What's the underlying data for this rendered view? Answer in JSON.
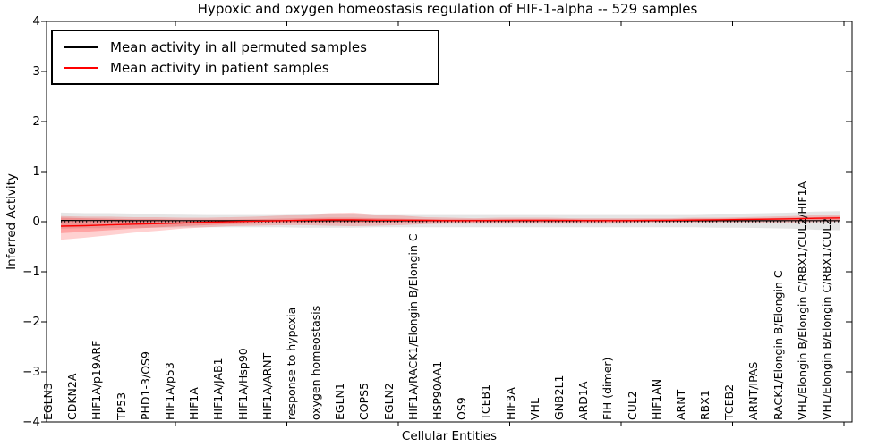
{
  "chart_data": {
    "type": "line",
    "title": "Hypoxic and oxygen homeostasis regulation of HIF-1-alpha -- 529 samples",
    "xlabel": "Cellular Entities",
    "ylabel": "Inferred Activity",
    "ylim": [
      -4,
      4
    ],
    "yticks": [
      4,
      3,
      2,
      1,
      0,
      -1,
      -2,
      -3,
      -4
    ],
    "grid": false,
    "legend_position": "upper left",
    "zero_reference_line": 0,
    "categories": [
      "EGLN3",
      "CDKN2A",
      "HIF1A/p19ARF",
      "TP53",
      "PHD1-3/OS9",
      "HIF1A/p53",
      "HIF1A",
      "HIF1A/JAB1",
      "HIF1A/Hsp90",
      "HIF1A/ARNT",
      "response to hypoxia",
      "oxygen homeostasis",
      "EGLN1",
      "COPS5",
      "EGLN2",
      "HIF1A/RACK1/Elongin B/Elongin C",
      "HSP90AA1",
      "OS9",
      "TCEB1",
      "HIF3A",
      "VHL",
      "GNB2L1",
      "ARD1A",
      "FIH (dimer)",
      "CUL2",
      "HIF1AN",
      "ARNT",
      "RBX1",
      "TCEB2",
      "ARNT/IPAS",
      "RACK1/Elongin B/Elongin C",
      "VHL/Elongin B/Elongin C/RBX1/CUL2/HIF1A",
      "VHL/Elongin B/Elongin C/RBX1/CUL2"
    ],
    "series": [
      {
        "name": "Mean activity in all permuted samples",
        "color": "#000000",
        "values": [
          0.025,
          0.024,
          0.023,
          0.022,
          0.022,
          0.021,
          0.02,
          0.02,
          0.02,
          0.02,
          0.02,
          0.02,
          0.02,
          0.02,
          0.02,
          0.02,
          0.02,
          0.02,
          0.02,
          0.02,
          0.02,
          0.02,
          0.02,
          0.02,
          0.02,
          0.02,
          0.02,
          0.02,
          0.02,
          0.02,
          0.021,
          0.022,
          0.022
        ]
      },
      {
        "name": "Mean activity in patient samples",
        "color": "#ff0000",
        "values": [
          -0.09,
          -0.08,
          -0.065,
          -0.05,
          -0.04,
          -0.025,
          -0.01,
          0.0,
          0.01,
          0.02,
          0.03,
          0.035,
          0.035,
          0.03,
          0.03,
          0.027,
          0.022,
          0.022,
          0.025,
          0.027,
          0.027,
          0.025,
          0.022,
          0.022,
          0.025,
          0.028,
          0.033,
          0.038,
          0.043,
          0.05,
          0.058,
          0.068,
          0.075
        ]
      }
    ],
    "bands": [
      {
        "name": "permuted-samples-spread",
        "color": "#aaaaaa",
        "opacity": 0.3,
        "upper": [
          0.18,
          0.17,
          0.17,
          0.16,
          0.16,
          0.155,
          0.15,
          0.15,
          0.15,
          0.15,
          0.16,
          0.16,
          0.16,
          0.15,
          0.15,
          0.15,
          0.15,
          0.15,
          0.15,
          0.15,
          0.15,
          0.15,
          0.15,
          0.15,
          0.15,
          0.15,
          0.15,
          0.16,
          0.16,
          0.17,
          0.18,
          0.2,
          0.21
        ],
        "lower": [
          -0.14,
          -0.13,
          -0.13,
          -0.12,
          -0.12,
          -0.115,
          -0.11,
          -0.11,
          -0.11,
          -0.11,
          -0.12,
          -0.12,
          -0.12,
          -0.11,
          -0.11,
          -0.11,
          -0.11,
          -0.11,
          -0.11,
          -0.11,
          -0.11,
          -0.11,
          -0.11,
          -0.11,
          -0.11,
          -0.11,
          -0.11,
          -0.12,
          -0.12,
          -0.13,
          -0.14,
          -0.16,
          -0.17
        ]
      },
      {
        "name": "patient-samples-spread-outer",
        "color": "#ff0000",
        "opacity": 0.18,
        "upper": [
          0.11,
          0.1,
          0.1,
          0.09,
          0.09,
          0.08,
          0.08,
          0.09,
          0.1,
          0.12,
          0.14,
          0.17,
          0.18,
          0.14,
          0.12,
          0.09,
          0.08,
          0.07,
          0.08,
          0.08,
          0.08,
          0.07,
          0.07,
          0.07,
          0.07,
          0.07,
          0.08,
          0.08,
          0.09,
          0.1,
          0.11,
          0.13,
          0.14
        ],
        "lower": [
          -0.36,
          -0.32,
          -0.27,
          -0.22,
          -0.18,
          -0.14,
          -0.11,
          -0.09,
          -0.08,
          -0.07,
          -0.07,
          -0.08,
          -0.09,
          -0.08,
          -0.07,
          -0.05,
          -0.04,
          -0.04,
          -0.04,
          -0.04,
          -0.04,
          -0.04,
          -0.04,
          -0.04,
          -0.035,
          -0.035,
          -0.03,
          -0.03,
          -0.03,
          -0.02,
          -0.02,
          -0.01,
          -0.005
        ]
      },
      {
        "name": "patient-samples-spread-inner",
        "color": "#ff0000",
        "opacity": 0.22,
        "upper": [
          0.08,
          0.07,
          0.06,
          0.05,
          0.05,
          0.04,
          0.04,
          0.04,
          0.05,
          0.06,
          0.07,
          0.08,
          0.08,
          0.07,
          0.06,
          0.05,
          0.05,
          0.05,
          0.05,
          0.05,
          0.05,
          0.05,
          0.05,
          0.05,
          0.05,
          0.05,
          0.06,
          0.06,
          0.07,
          0.07,
          0.08,
          0.09,
          0.1
        ],
        "lower": [
          -0.23,
          -0.2,
          -0.17,
          -0.14,
          -0.11,
          -0.09,
          -0.07,
          -0.05,
          -0.04,
          -0.03,
          -0.02,
          -0.02,
          -0.02,
          -0.02,
          -0.015,
          -0.01,
          -0.01,
          -0.01,
          -0.01,
          -0.01,
          -0.01,
          -0.01,
          -0.01,
          -0.01,
          0.0,
          0.0,
          0.0,
          0.005,
          0.01,
          0.015,
          0.02,
          0.03,
          0.03
        ]
      }
    ]
  }
}
